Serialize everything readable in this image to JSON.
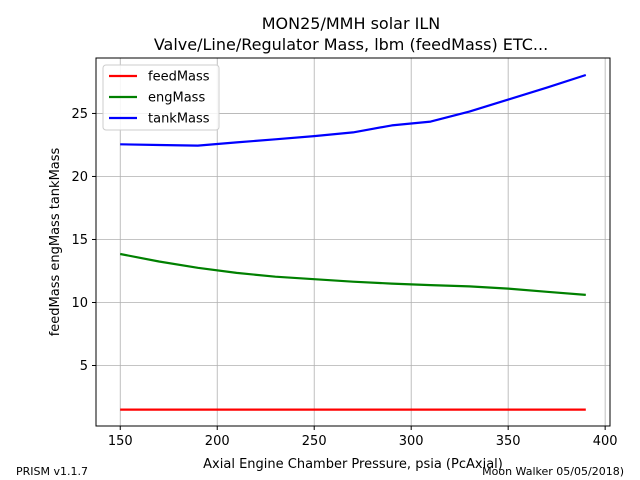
{
  "chart_data": {
    "type": "line",
    "title": "MON25/MMH solar ILN",
    "subtitle": "Valve/Line/Regulator Mass, lbm (feedMass) ETC...",
    "xlabel": "Axial Engine Chamber Pressure, psia (PcAxial)",
    "ylabel": "feedMass engMass tankMass",
    "xlim": [
      137.5,
      402.5
    ],
    "ylim": [
      0.2,
      29.4
    ],
    "xticks": [
      150,
      200,
      250,
      300,
      350,
      400
    ],
    "yticks": [
      5,
      10,
      15,
      20,
      25
    ],
    "grid": true,
    "legend_position": "top-left",
    "x": [
      150,
      170,
      190,
      210,
      230,
      250,
      270,
      290,
      310,
      330,
      350,
      370,
      390
    ],
    "series": [
      {
        "name": "feedMass",
        "color": "#ff0000",
        "values": [
          1.5,
          1.5,
          1.5,
          1.5,
          1.5,
          1.5,
          1.5,
          1.5,
          1.5,
          1.5,
          1.5,
          1.5,
          1.5
        ]
      },
      {
        "name": "engMass",
        "color": "#008000",
        "values": [
          13.85,
          13.25,
          12.75,
          12.35,
          12.05,
          11.85,
          11.65,
          11.5,
          11.38,
          11.28,
          11.1,
          10.85,
          10.6
        ]
      },
      {
        "name": "tankMass",
        "color": "#0000ff",
        "values": [
          22.55,
          22.5,
          22.45,
          22.7,
          22.95,
          23.2,
          23.5,
          24.05,
          24.35,
          25.15,
          26.1,
          27.05,
          28.05
        ]
      }
    ]
  },
  "footer": {
    "left": "PRISM v1.1.7",
    "right": "Moon Walker 05/05/2018)"
  }
}
